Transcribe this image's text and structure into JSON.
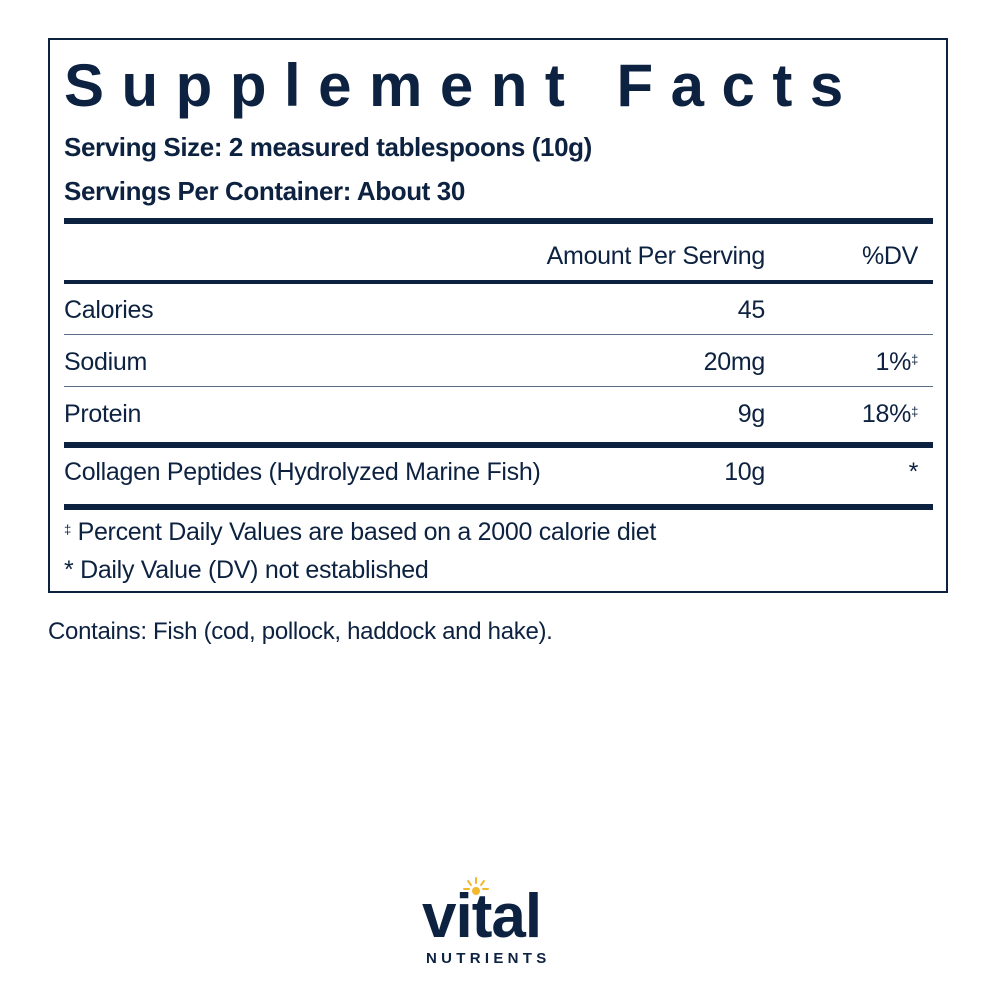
{
  "panel": {
    "title": "Supplement Facts",
    "serving_size": "Serving Size: 2 measured tablespoons (10g)",
    "servings_per_container": "Servings Per Container: About 30",
    "header": {
      "amount": "Amount Per Serving",
      "dv": "%DV"
    },
    "rows": [
      {
        "name": "Calories",
        "amount": "45",
        "dv": ""
      },
      {
        "name": "Sodium",
        "amount": "20mg",
        "dv": "1%",
        "dv_mark": "‡"
      },
      {
        "name": "Protein",
        "amount": "9g",
        "dv": "18%",
        "dv_mark": "‡"
      },
      {
        "name": "Collagen Peptides (Hydrolyzed Marine Fish)",
        "amount": "10g",
        "dv": "*"
      }
    ],
    "footnotes": [
      {
        "mark": "‡",
        "text": " Percent Daily Values are based on a 2000 calorie diet"
      },
      {
        "mark": "",
        "text": "* Daily Value (DV) not established"
      }
    ]
  },
  "contains": "Contains: Fish (cod, pollock, haddock and hake).",
  "logo": {
    "word": "vital",
    "sub": "NUTRIENTS"
  },
  "colors": {
    "navy": "#0d2240",
    "sun": "#f2b830"
  }
}
